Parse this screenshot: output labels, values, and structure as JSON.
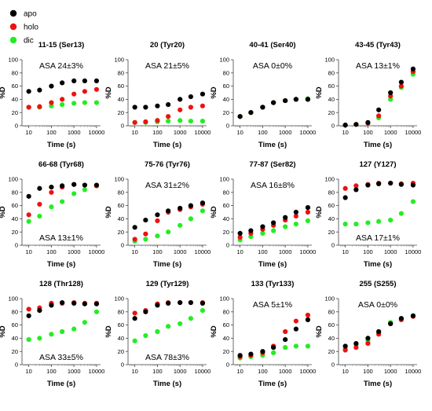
{
  "colors": {
    "apo": "#000000",
    "holo": "#ee1111",
    "dic": "#22ee22"
  },
  "legend": {
    "items": [
      {
        "key": "apo",
        "label": "apo"
      },
      {
        "key": "holo",
        "label": "holo"
      },
      {
        "key": "dic",
        "label": "dic"
      }
    ]
  },
  "chart_data": [
    {
      "type": "scatter",
      "title": "11-15 (Ser13)",
      "annotation": "ASA 24±3%",
      "annotation_pos": "top",
      "xlabel": "Time (s)",
      "ylabel": "%D",
      "xscale": "log",
      "xlim": [
        5,
        15000
      ],
      "ylim": [
        0,
        100
      ],
      "xticks": [
        "10",
        "100",
        "1000",
        "10000"
      ],
      "yticks": [
        "0",
        "20",
        "40",
        "60",
        "80",
        "100"
      ],
      "x": [
        10,
        30,
        100,
        300,
        1000,
        3000,
        10000
      ],
      "series": [
        {
          "name": "apo",
          "values": [
            52,
            54,
            60,
            65,
            68,
            68,
            68
          ]
        },
        {
          "name": "holo",
          "values": [
            28,
            29,
            35,
            40,
            48,
            52,
            55
          ]
        },
        {
          "name": "dic",
          "values": [
            28,
            28,
            30,
            32,
            34,
            35,
            35
          ]
        }
      ]
    },
    {
      "type": "scatter",
      "title": "20 (Tyr20)",
      "annotation": "ASA 21±5%",
      "annotation_pos": "top",
      "xlabel": "Time (s)",
      "ylabel": "%D",
      "xscale": "log",
      "xlim": [
        5,
        15000
      ],
      "ylim": [
        0,
        100
      ],
      "xticks": [
        "10",
        "100",
        "1000",
        "10000"
      ],
      "yticks": [
        "0",
        "20",
        "40",
        "60",
        "80",
        "100"
      ],
      "x": [
        10,
        30,
        100,
        300,
        1000,
        3000,
        10000
      ],
      "series": [
        {
          "name": "apo",
          "values": [
            28,
            28,
            30,
            32,
            40,
            44,
            48
          ]
        },
        {
          "name": "holo",
          "values": [
            5,
            6,
            8,
            14,
            24,
            28,
            30
          ]
        },
        {
          "name": "dic",
          "values": [
            5,
            5,
            6,
            7,
            8,
            7,
            7
          ]
        }
      ]
    },
    {
      "type": "scatter",
      "title": "40-41 (Ser40)",
      "annotation": "ASA 0±0%",
      "annotation_pos": "top",
      "xlabel": "Time (s)",
      "ylabel": "%D",
      "xscale": "log",
      "xlim": [
        5,
        15000
      ],
      "ylim": [
        0,
        100
      ],
      "xticks": [
        "10",
        "100",
        "1000",
        "10000"
      ],
      "yticks": [
        "0",
        "20",
        "40",
        "60",
        "80",
        "100"
      ],
      "x": [
        10,
        30,
        100,
        300,
        1000,
        3000,
        10000
      ],
      "series": [
        {
          "name": "apo",
          "values": [
            14,
            20,
            28,
            35,
            38,
            40,
            40
          ]
        },
        {
          "name": "holo",
          "values": [
            14,
            20,
            28,
            35,
            38,
            40,
            40
          ]
        },
        {
          "name": "dic",
          "values": [
            14,
            20,
            28,
            35,
            38,
            40,
            41
          ]
        }
      ]
    },
    {
      "type": "scatter",
      "title": "43-45 (Tyr43)",
      "annotation": "ASA 13±1%",
      "annotation_pos": "top",
      "xlabel": "Time (s)",
      "ylabel": "%D",
      "xscale": "log",
      "xlim": [
        5,
        15000
      ],
      "ylim": [
        0,
        100
      ],
      "xticks": [
        "10",
        "100",
        "1000",
        "10000"
      ],
      "yticks": [
        "0",
        "20",
        "40",
        "60",
        "80",
        "100"
      ],
      "x": [
        10,
        30,
        100,
        300,
        1000,
        3000,
        10000
      ],
      "series": [
        {
          "name": "apo",
          "values": [
            1,
            2,
            5,
            24,
            50,
            66,
            86
          ]
        },
        {
          "name": "holo",
          "values": [
            1,
            2,
            4,
            15,
            45,
            60,
            82
          ]
        },
        {
          "name": "dic",
          "values": [
            1,
            2,
            4,
            12,
            40,
            58,
            78
          ]
        }
      ]
    },
    {
      "type": "scatter",
      "title": "66-68 (Tyr68)",
      "annotation": "ASA 13±1%",
      "annotation_pos": "bottom",
      "xlabel": "Time (s)",
      "ylabel": "%D",
      "xscale": "log",
      "xlim": [
        5,
        15000
      ],
      "ylim": [
        0,
        100
      ],
      "xticks": [
        "10",
        "100",
        "1000",
        "10000"
      ],
      "yticks": [
        "0",
        "20",
        "40",
        "60",
        "80",
        "100"
      ],
      "x": [
        10,
        30,
        100,
        300,
        1000,
        3000,
        10000
      ],
      "series": [
        {
          "name": "apo",
          "values": [
            74,
            86,
            88,
            90,
            92,
            91,
            91
          ]
        },
        {
          "name": "holo",
          "values": [
            46,
            62,
            80,
            88,
            92,
            91,
            90
          ]
        },
        {
          "name": "dic",
          "values": [
            36,
            44,
            58,
            66,
            78,
            84,
            90
          ]
        }
      ]
    },
    {
      "type": "scatter",
      "title": "75-76 (Tyr76)",
      "annotation": "ASA 31±2%",
      "annotation_pos": "top",
      "xlabel": "Time (s)",
      "ylabel": "%D",
      "xscale": "log",
      "xlim": [
        5,
        15000
      ],
      "ylim": [
        0,
        100
      ],
      "xticks": [
        "10",
        "100",
        "1000",
        "10000"
      ],
      "yticks": [
        "0",
        "20",
        "40",
        "60",
        "80",
        "100"
      ],
      "x": [
        10,
        30,
        100,
        300,
        1000,
        3000,
        10000
      ],
      "series": [
        {
          "name": "apo",
          "values": [
            27,
            38,
            46,
            52,
            56,
            60,
            64
          ]
        },
        {
          "name": "holo",
          "values": [
            9,
            17,
            37,
            50,
            54,
            58,
            62
          ]
        },
        {
          "name": "dic",
          "values": [
            6,
            9,
            14,
            20,
            30,
            40,
            52
          ]
        }
      ]
    },
    {
      "type": "scatter",
      "title": "77-87 (Ser82)",
      "annotation": "ASA 16±8%",
      "annotation_pos": "top",
      "xlabel": "Time (s)",
      "ylabel": "%D",
      "xscale": "log",
      "xlim": [
        5,
        15000
      ],
      "ylim": [
        0,
        100
      ],
      "xticks": [
        "10",
        "100",
        "1000",
        "10000"
      ],
      "yticks": [
        "0",
        "20",
        "40",
        "60",
        "80",
        "100"
      ],
      "x": [
        10,
        30,
        100,
        300,
        1000,
        3000,
        10000
      ],
      "series": [
        {
          "name": "apo",
          "values": [
            18,
            22,
            28,
            34,
            42,
            50,
            57
          ]
        },
        {
          "name": "holo",
          "values": [
            12,
            18,
            24,
            30,
            38,
            44,
            50
          ]
        },
        {
          "name": "dic",
          "values": [
            8,
            13,
            18,
            22,
            28,
            32,
            37
          ]
        }
      ]
    },
    {
      "type": "scatter",
      "title": "127 (Y127)",
      "annotation": "ASA 17±1%",
      "annotation_pos": "bottom",
      "xlabel": "Time (s)",
      "ylabel": "%D",
      "xscale": "log",
      "xlim": [
        5,
        15000
      ],
      "ylim": [
        0,
        100
      ],
      "xticks": [
        "10",
        "100",
        "1000",
        "10000"
      ],
      "yticks": [
        "0",
        "20",
        "40",
        "60",
        "80",
        "100"
      ],
      "x": [
        10,
        30,
        100,
        300,
        1000,
        3000,
        10000
      ],
      "series": [
        {
          "name": "apo",
          "values": [
            72,
            84,
            91,
            93,
            94,
            92,
            91
          ]
        },
        {
          "name": "holo",
          "values": [
            86,
            90,
            92,
            94,
            94,
            93,
            94
          ]
        },
        {
          "name": "dic",
          "values": [
            32,
            32,
            34,
            36,
            38,
            48,
            66
          ]
        }
      ]
    },
    {
      "type": "scatter",
      "title": "128 (Thr128)",
      "annotation": "ASA 33±5%",
      "annotation_pos": "bottom",
      "xlabel": "Time (s)",
      "ylabel": "%D",
      "xscale": "log",
      "xlim": [
        5,
        15000
      ],
      "ylim": [
        0,
        100
      ],
      "xticks": [
        "10",
        "100",
        "1000",
        "10000"
      ],
      "yticks": [
        "0",
        "20",
        "40",
        "60",
        "80",
        "100"
      ],
      "x": [
        10,
        30,
        100,
        300,
        1000,
        3000,
        10000
      ],
      "series": [
        {
          "name": "apo",
          "values": [
            74,
            82,
            90,
            94,
            93,
            92,
            92
          ]
        },
        {
          "name": "holo",
          "values": [
            84,
            86,
            93,
            93,
            94,
            93,
            93
          ]
        },
        {
          "name": "dic",
          "values": [
            38,
            40,
            46,
            50,
            54,
            64,
            80
          ]
        }
      ]
    },
    {
      "type": "scatter",
      "title": "129 (Tyr129)",
      "annotation": "ASA 78±3%",
      "annotation_pos": "bottom",
      "xlabel": "Time (s)",
      "ylabel": "%D",
      "xscale": "log",
      "xlim": [
        5,
        15000
      ],
      "ylim": [
        0,
        100
      ],
      "xticks": [
        "10",
        "100",
        "1000",
        "10000"
      ],
      "yticks": [
        "0",
        "20",
        "40",
        "60",
        "80",
        "100"
      ],
      "x": [
        10,
        30,
        100,
        300,
        1000,
        3000,
        10000
      ],
      "series": [
        {
          "name": "apo",
          "values": [
            70,
            80,
            90,
            93,
            94,
            94,
            93
          ]
        },
        {
          "name": "holo",
          "values": [
            78,
            82,
            92,
            94,
            94,
            94,
            94
          ]
        },
        {
          "name": "dic",
          "values": [
            36,
            44,
            50,
            58,
            62,
            70,
            82
          ]
        }
      ]
    },
    {
      "type": "scatter",
      "title": "133 (Tyr133)",
      "annotation": "ASA 5±1%",
      "annotation_pos": "top",
      "xlabel": "Time (s)",
      "ylabel": "%D",
      "xscale": "log",
      "xlim": [
        5,
        15000
      ],
      "ylim": [
        0,
        100
      ],
      "xticks": [
        "10",
        "100",
        "1000",
        "10000"
      ],
      "yticks": [
        "0",
        "20",
        "40",
        "60",
        "80",
        "100"
      ],
      "x": [
        10,
        30,
        100,
        300,
        1000,
        3000,
        10000
      ],
      "series": [
        {
          "name": "apo",
          "values": [
            14,
            16,
            20,
            26,
            38,
            54,
            68
          ]
        },
        {
          "name": "holo",
          "values": [
            12,
            14,
            18,
            28,
            50,
            66,
            75
          ]
        },
        {
          "name": "dic",
          "values": [
            10,
            12,
            14,
            18,
            26,
            28,
            28
          ]
        }
      ]
    },
    {
      "type": "scatter",
      "title": "255 (S255)",
      "annotation": "ASA 0±0%",
      "annotation_pos": "top",
      "xlabel": "Time (s)",
      "ylabel": "%D",
      "xscale": "log",
      "xlim": [
        5,
        15000
      ],
      "ylim": [
        0,
        100
      ],
      "xticks": [
        "10",
        "100",
        "1000",
        "10000"
      ],
      "yticks": [
        "0",
        "20",
        "40",
        "60",
        "80",
        "100"
      ],
      "x": [
        10,
        30,
        100,
        300,
        1000,
        3000,
        10000
      ],
      "series": [
        {
          "name": "apo",
          "values": [
            28,
            32,
            40,
            50,
            62,
            70,
            74
          ]
        },
        {
          "name": "holo",
          "values": [
            22,
            26,
            32,
            46,
            62,
            68,
            73
          ]
        },
        {
          "name": "dic",
          "values": [
            24,
            30,
            36,
            48,
            64,
            70,
            74
          ]
        }
      ]
    }
  ]
}
